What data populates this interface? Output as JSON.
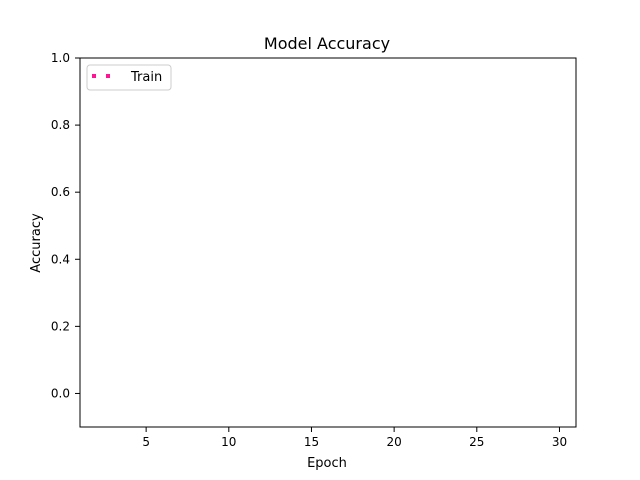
{
  "chart_data": {
    "type": "line",
    "title": "Model Accuracy",
    "xlabel": "Epoch",
    "ylabel": "Accuracy",
    "xlim": [
      1,
      31
    ],
    "ylim": [
      -0.1,
      1.0
    ],
    "xticks": [
      5,
      10,
      15,
      20,
      25,
      30
    ],
    "yticks": [
      0.0,
      0.2,
      0.4,
      0.6,
      0.8,
      1.0
    ],
    "grid": false,
    "legend_position": "top-left",
    "series": [
      {
        "name": "Train",
        "color": "#ff1493",
        "line_style": "dotted",
        "x": [],
        "y": []
      }
    ]
  }
}
